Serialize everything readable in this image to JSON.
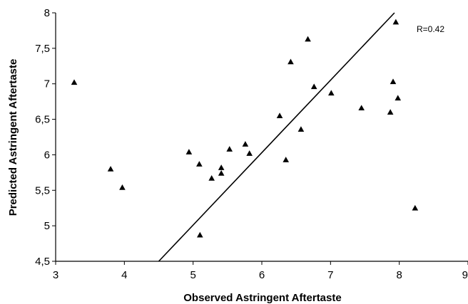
{
  "chart_data": {
    "type": "scatter",
    "title": "",
    "xlabel": "Observed Astringent Aftertaste",
    "ylabel": "Predicted Astringent Aftertaste",
    "xlim": [
      3,
      9
    ],
    "ylim": [
      4.5,
      8
    ],
    "x_ticks": [
      "3",
      "4",
      "5",
      "6",
      "7",
      "8",
      "9"
    ],
    "y_ticks": [
      "4,5",
      "5",
      "5,5",
      "6",
      "6,5",
      "7",
      "7,5",
      "8"
    ],
    "grid": false,
    "annotation": "R=0.42",
    "marker": "triangle",
    "points": [
      {
        "x": 3.27,
        "y": 7.02
      },
      {
        "x": 3.8,
        "y": 5.8
      },
      {
        "x": 3.97,
        "y": 5.54
      },
      {
        "x": 4.94,
        "y": 6.04
      },
      {
        "x": 5.09,
        "y": 5.87
      },
      {
        "x": 5.1,
        "y": 4.87
      },
      {
        "x": 5.27,
        "y": 5.67
      },
      {
        "x": 5.41,
        "y": 5.82
      },
      {
        "x": 5.41,
        "y": 5.74
      },
      {
        "x": 5.53,
        "y": 6.08
      },
      {
        "x": 5.76,
        "y": 6.15
      },
      {
        "x": 5.82,
        "y": 6.02
      },
      {
        "x": 6.26,
        "y": 6.55
      },
      {
        "x": 6.35,
        "y": 5.93
      },
      {
        "x": 6.42,
        "y": 7.31
      },
      {
        "x": 6.57,
        "y": 6.36
      },
      {
        "x": 6.67,
        "y": 7.63
      },
      {
        "x": 6.76,
        "y": 6.96
      },
      {
        "x": 7.01,
        "y": 6.87
      },
      {
        "x": 7.45,
        "y": 6.66
      },
      {
        "x": 7.87,
        "y": 6.6
      },
      {
        "x": 7.91,
        "y": 7.03
      },
      {
        "x": 7.95,
        "y": 7.87
      },
      {
        "x": 7.98,
        "y": 6.8
      },
      {
        "x": 8.23,
        "y": 5.25
      }
    ],
    "line": {
      "x": [
        4.5,
        7.93
      ],
      "y": [
        4.5,
        8.0
      ]
    }
  }
}
